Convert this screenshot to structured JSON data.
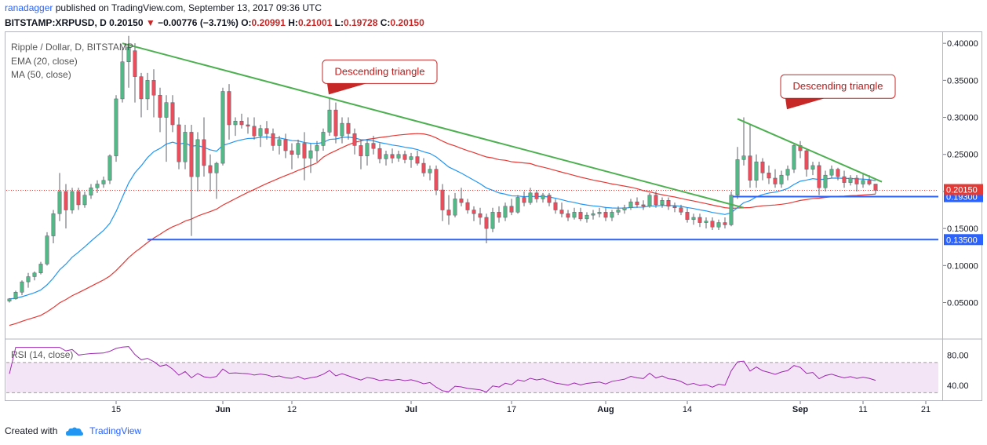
{
  "header": {
    "user": "ranadagger",
    "published_text": "published on TradingView.com, September 13, 2017 09:36 UTC",
    "symbol": "BITSTAMP:XRPUSD, D",
    "last": "0.20150",
    "change_arrow": "▼",
    "change": "−0.00776 (−3.71%)",
    "o_label": "O:",
    "o_value": "0.20991",
    "h_label": "H:",
    "h_value": "0.21001",
    "l_label": "L:",
    "l_value": "0.19728",
    "c_label": "C:",
    "c_value": "0.20150"
  },
  "legend": {
    "title": "Ripple / Dollar, D, BITSTAMP",
    "ema": "EMA (20, close)",
    "ma": "MA (50, close)",
    "rsi": "RSI (14, close)"
  },
  "footer": {
    "created_with": "Created with",
    "brand": "TradingView"
  },
  "colors": {
    "up": "#53b987",
    "down": "#eb4d5c",
    "ema": "#2196f3",
    "ma": "#e53935",
    "trend": "#4caf50",
    "support": "#2962ff",
    "rsi": "#9c27b0",
    "rsi_band": "#f3e5f5"
  },
  "chart_data": {
    "type": "candlestick",
    "symbol": "BITSTAMP:XRPUSD",
    "interval": "D",
    "x_ticks": [
      "15",
      "Jun",
      "12",
      "Jul",
      "17",
      "Aug",
      "14",
      "Sep",
      "11",
      "21"
    ],
    "y_ticks": [
      "0.40000",
      "0.35000",
      "0.30000",
      "0.25000",
      "0.20000",
      "0.15000",
      "0.10000",
      "0.05000"
    ],
    "y_range": [
      0.005,
      0.415
    ],
    "rsi_ticks": [
      "80.00",
      "40.00"
    ],
    "rsi_range": [
      20,
      100
    ],
    "last_price_label": "0.20150",
    "support_levels": [
      {
        "label": "0.19300",
        "value": 0.193,
        "from": "2017-08-21",
        "to": "2017-09-13"
      },
      {
        "label": "0.13500",
        "value": 0.135,
        "from": "2017-05-20",
        "to": "2017-09-13"
      }
    ],
    "annotations": [
      {
        "text": "Descending triangle",
        "anchor_date": "2017-06-26",
        "anchor_value": 0.35
      },
      {
        "text": "Descending triangle",
        "anchor_date": "2017-09-07",
        "anchor_value": 0.33
      }
    ],
    "trend_lines": [
      {
        "from": [
          "2017-05-16",
          0.4
        ],
        "to": [
          "2017-08-23",
          0.178
        ]
      },
      {
        "from": [
          "2017-08-22",
          0.298
        ],
        "to": [
          "2017-09-14",
          0.213
        ]
      }
    ],
    "candles": [
      [
        "2017-04-28",
        0.052,
        0.056,
        0.05,
        0.055
      ],
      [
        "2017-04-29",
        0.055,
        0.066,
        0.054,
        0.064
      ],
      [
        "2017-04-30",
        0.064,
        0.08,
        0.06,
        0.078
      ],
      [
        "2017-05-01",
        0.078,
        0.09,
        0.07,
        0.085
      ],
      [
        "2017-05-02",
        0.085,
        0.092,
        0.08,
        0.09
      ],
      [
        "2017-05-03",
        0.09,
        0.105,
        0.088,
        0.102
      ],
      [
        "2017-05-04",
        0.102,
        0.145,
        0.1,
        0.14
      ],
      [
        "2017-05-05",
        0.14,
        0.175,
        0.13,
        0.17
      ],
      [
        "2017-05-06",
        0.17,
        0.225,
        0.16,
        0.2
      ],
      [
        "2017-05-07",
        0.2,
        0.21,
        0.15,
        0.175
      ],
      [
        "2017-05-08",
        0.175,
        0.205,
        0.17,
        0.2
      ],
      [
        "2017-05-09",
        0.2,
        0.205,
        0.175,
        0.182
      ],
      [
        "2017-05-10",
        0.182,
        0.2,
        0.178,
        0.195
      ],
      [
        "2017-05-11",
        0.195,
        0.21,
        0.19,
        0.205
      ],
      [
        "2017-05-12",
        0.205,
        0.215,
        0.198,
        0.21
      ],
      [
        "2017-05-13",
        0.21,
        0.22,
        0.205,
        0.215
      ],
      [
        "2017-05-14",
        0.215,
        0.25,
        0.21,
        0.248
      ],
      [
        "2017-05-15",
        0.248,
        0.33,
        0.24,
        0.325
      ],
      [
        "2017-05-16",
        0.325,
        0.395,
        0.32,
        0.375
      ],
      [
        "2017-05-17",
        0.375,
        0.41,
        0.34,
        0.395
      ],
      [
        "2017-05-18",
        0.39,
        0.4,
        0.32,
        0.355
      ],
      [
        "2017-05-19",
        0.355,
        0.36,
        0.3,
        0.325
      ],
      [
        "2017-05-20",
        0.325,
        0.36,
        0.31,
        0.35
      ],
      [
        "2017-05-21",
        0.35,
        0.365,
        0.3,
        0.33
      ],
      [
        "2017-05-22",
        0.33,
        0.34,
        0.28,
        0.3
      ],
      [
        "2017-05-23",
        0.3,
        0.33,
        0.24,
        0.32
      ],
      [
        "2017-05-24",
        0.32,
        0.33,
        0.28,
        0.29
      ],
      [
        "2017-05-25",
        0.29,
        0.3,
        0.23,
        0.24
      ],
      [
        "2017-05-26",
        0.24,
        0.29,
        0.23,
        0.28
      ],
      [
        "2017-05-27",
        0.28,
        0.29,
        0.14,
        0.22
      ],
      [
        "2017-05-28",
        0.22,
        0.28,
        0.2,
        0.27
      ],
      [
        "2017-05-29",
        0.27,
        0.3,
        0.22,
        0.235
      ],
      [
        "2017-05-30",
        0.235,
        0.25,
        0.2,
        0.225
      ],
      [
        "2017-05-31",
        0.225,
        0.24,
        0.19,
        0.238
      ],
      [
        "2017-06-01",
        0.238,
        0.34,
        0.235,
        0.335
      ],
      [
        "2017-06-02",
        0.335,
        0.345,
        0.27,
        0.29
      ],
      [
        "2017-06-03",
        0.29,
        0.3,
        0.275,
        0.295
      ],
      [
        "2017-06-04",
        0.295,
        0.305,
        0.285,
        0.29
      ],
      [
        "2017-06-05",
        0.29,
        0.3,
        0.278,
        0.288
      ],
      [
        "2017-06-06",
        0.288,
        0.3,
        0.27,
        0.275
      ],
      [
        "2017-06-07",
        0.275,
        0.29,
        0.26,
        0.285
      ],
      [
        "2017-06-08",
        0.285,
        0.295,
        0.27,
        0.278
      ],
      [
        "2017-06-09",
        0.278,
        0.285,
        0.255,
        0.262
      ],
      [
        "2017-06-10",
        0.262,
        0.275,
        0.25,
        0.27
      ],
      [
        "2017-06-11",
        0.27,
        0.278,
        0.245,
        0.255
      ],
      [
        "2017-06-12",
        0.255,
        0.265,
        0.23,
        0.25
      ],
      [
        "2017-06-13",
        0.25,
        0.27,
        0.245,
        0.265
      ],
      [
        "2017-06-14",
        0.265,
        0.28,
        0.215,
        0.245
      ],
      [
        "2017-06-15",
        0.245,
        0.265,
        0.225,
        0.255
      ],
      [
        "2017-06-16",
        0.255,
        0.268,
        0.24,
        0.262
      ],
      [
        "2017-06-17",
        0.262,
        0.285,
        0.255,
        0.28
      ],
      [
        "2017-06-18",
        0.28,
        0.325,
        0.275,
        0.31
      ],
      [
        "2017-06-19",
        0.31,
        0.32,
        0.265,
        0.275
      ],
      [
        "2017-06-20",
        0.275,
        0.3,
        0.265,
        0.292
      ],
      [
        "2017-06-21",
        0.292,
        0.3,
        0.27,
        0.278
      ],
      [
        "2017-06-22",
        0.278,
        0.285,
        0.25,
        0.262
      ],
      [
        "2017-06-23",
        0.262,
        0.27,
        0.23,
        0.248
      ],
      [
        "2017-06-24",
        0.248,
        0.27,
        0.235,
        0.265
      ],
      [
        "2017-06-25",
        0.265,
        0.275,
        0.25,
        0.258
      ],
      [
        "2017-06-26",
        0.258,
        0.265,
        0.238,
        0.244
      ],
      [
        "2017-06-27",
        0.244,
        0.255,
        0.235,
        0.25
      ],
      [
        "2017-06-28",
        0.25,
        0.258,
        0.238,
        0.245
      ],
      [
        "2017-06-29",
        0.245,
        0.255,
        0.24,
        0.25
      ],
      [
        "2017-06-30",
        0.25,
        0.255,
        0.238,
        0.243
      ],
      [
        "2017-07-01",
        0.243,
        0.252,
        0.232,
        0.247
      ],
      [
        "2017-07-02",
        0.247,
        0.255,
        0.235,
        0.238
      ],
      [
        "2017-07-03",
        0.238,
        0.245,
        0.22,
        0.225
      ],
      [
        "2017-07-04",
        0.225,
        0.235,
        0.215,
        0.23
      ],
      [
        "2017-07-05",
        0.23,
        0.235,
        0.195,
        0.202
      ],
      [
        "2017-07-06",
        0.202,
        0.21,
        0.16,
        0.175
      ],
      [
        "2017-07-07",
        0.175,
        0.195,
        0.155,
        0.168
      ],
      [
        "2017-07-08",
        0.168,
        0.198,
        0.165,
        0.19
      ],
      [
        "2017-07-09",
        0.19,
        0.205,
        0.18,
        0.185
      ],
      [
        "2017-07-10",
        0.185,
        0.19,
        0.17,
        0.175
      ],
      [
        "2017-07-11",
        0.175,
        0.18,
        0.16,
        0.17
      ],
      [
        "2017-07-12",
        0.17,
        0.178,
        0.155,
        0.165
      ],
      [
        "2017-07-13",
        0.165,
        0.17,
        0.13,
        0.15
      ],
      [
        "2017-07-14",
        0.15,
        0.178,
        0.145,
        0.172
      ],
      [
        "2017-07-15",
        0.172,
        0.18,
        0.158,
        0.165
      ],
      [
        "2017-07-16",
        0.165,
        0.185,
        0.16,
        0.18
      ],
      [
        "2017-07-17",
        0.18,
        0.19,
        0.168,
        0.172
      ],
      [
        "2017-07-18",
        0.172,
        0.195,
        0.17,
        0.192
      ],
      [
        "2017-07-19",
        0.192,
        0.2,
        0.18,
        0.185
      ],
      [
        "2017-07-20",
        0.185,
        0.205,
        0.182,
        0.198
      ],
      [
        "2017-07-21",
        0.198,
        0.202,
        0.185,
        0.19
      ],
      [
        "2017-07-22",
        0.19,
        0.198,
        0.185,
        0.195
      ],
      [
        "2017-07-23",
        0.195,
        0.198,
        0.18,
        0.185
      ],
      [
        "2017-07-24",
        0.185,
        0.19,
        0.17,
        0.175
      ],
      [
        "2017-07-25",
        0.175,
        0.185,
        0.165,
        0.17
      ],
      [
        "2017-07-26",
        0.17,
        0.175,
        0.16,
        0.165
      ],
      [
        "2017-07-27",
        0.165,
        0.178,
        0.162,
        0.172
      ],
      [
        "2017-07-28",
        0.172,
        0.178,
        0.16,
        0.163
      ],
      [
        "2017-07-29",
        0.163,
        0.172,
        0.158,
        0.168
      ],
      [
        "2017-07-30",
        0.168,
        0.175,
        0.162,
        0.17
      ],
      [
        "2017-07-31",
        0.17,
        0.178,
        0.165,
        0.172
      ],
      [
        "2017-08-01",
        0.172,
        0.178,
        0.16,
        0.165
      ],
      [
        "2017-08-02",
        0.165,
        0.175,
        0.16,
        0.172
      ],
      [
        "2017-08-03",
        0.172,
        0.18,
        0.168,
        0.175
      ],
      [
        "2017-08-04",
        0.175,
        0.182,
        0.17,
        0.178
      ],
      [
        "2017-08-05",
        0.178,
        0.19,
        0.175,
        0.186
      ],
      [
        "2017-08-06",
        0.186,
        0.192,
        0.178,
        0.182
      ],
      [
        "2017-08-07",
        0.182,
        0.188,
        0.175,
        0.18
      ],
      [
        "2017-08-08",
        0.18,
        0.198,
        0.178,
        0.195
      ],
      [
        "2017-08-09",
        0.195,
        0.2,
        0.178,
        0.182
      ],
      [
        "2017-08-10",
        0.182,
        0.192,
        0.178,
        0.188
      ],
      [
        "2017-08-11",
        0.188,
        0.192,
        0.175,
        0.18
      ],
      [
        "2017-08-12",
        0.18,
        0.185,
        0.172,
        0.178
      ],
      [
        "2017-08-13",
        0.178,
        0.182,
        0.168,
        0.172
      ],
      [
        "2017-08-14",
        0.172,
        0.178,
        0.158,
        0.162
      ],
      [
        "2017-08-15",
        0.162,
        0.17,
        0.155,
        0.165
      ],
      [
        "2017-08-16",
        0.165,
        0.17,
        0.152,
        0.158
      ],
      [
        "2017-08-17",
        0.158,
        0.165,
        0.15,
        0.16
      ],
      [
        "2017-08-18",
        0.16,
        0.165,
        0.148,
        0.152
      ],
      [
        "2017-08-19",
        0.152,
        0.162,
        0.148,
        0.158
      ],
      [
        "2017-08-20",
        0.158,
        0.165,
        0.15,
        0.155
      ],
      [
        "2017-08-21",
        0.155,
        0.2,
        0.153,
        0.195
      ],
      [
        "2017-08-22",
        0.195,
        0.26,
        0.19,
        0.243
      ],
      [
        "2017-08-23",
        0.243,
        0.3,
        0.235,
        0.248
      ],
      [
        "2017-08-24",
        0.248,
        0.29,
        0.205,
        0.215
      ],
      [
        "2017-08-25",
        0.215,
        0.25,
        0.205,
        0.24
      ],
      [
        "2017-08-26",
        0.24,
        0.245,
        0.215,
        0.225
      ],
      [
        "2017-08-27",
        0.225,
        0.235,
        0.21,
        0.218
      ],
      [
        "2017-08-28",
        0.218,
        0.23,
        0.205,
        0.21
      ],
      [
        "2017-08-29",
        0.21,
        0.228,
        0.205,
        0.222
      ],
      [
        "2017-08-30",
        0.222,
        0.235,
        0.215,
        0.23
      ],
      [
        "2017-08-31",
        0.23,
        0.265,
        0.225,
        0.262
      ],
      [
        "2017-09-01",
        0.262,
        0.268,
        0.245,
        0.255
      ],
      [
        "2017-09-02",
        0.255,
        0.258,
        0.22,
        0.23
      ],
      [
        "2017-09-03",
        0.23,
        0.24,
        0.222,
        0.235
      ],
      [
        "2017-09-04",
        0.235,
        0.24,
        0.195,
        0.205
      ],
      [
        "2017-09-05",
        0.205,
        0.228,
        0.2,
        0.222
      ],
      [
        "2017-09-06",
        0.222,
        0.235,
        0.218,
        0.23
      ],
      [
        "2017-09-07",
        0.23,
        0.232,
        0.215,
        0.22
      ],
      [
        "2017-09-08",
        0.22,
        0.228,
        0.205,
        0.212
      ],
      [
        "2017-09-09",
        0.212,
        0.222,
        0.208,
        0.218
      ],
      [
        "2017-09-10",
        0.218,
        0.222,
        0.2,
        0.21
      ],
      [
        "2017-09-11",
        0.21,
        0.225,
        0.205,
        0.215
      ],
      [
        "2017-09-12",
        0.215,
        0.222,
        0.208,
        0.21
      ],
      [
        "2017-09-13",
        0.21,
        0.21,
        0.197,
        0.2015
      ]
    ]
  }
}
